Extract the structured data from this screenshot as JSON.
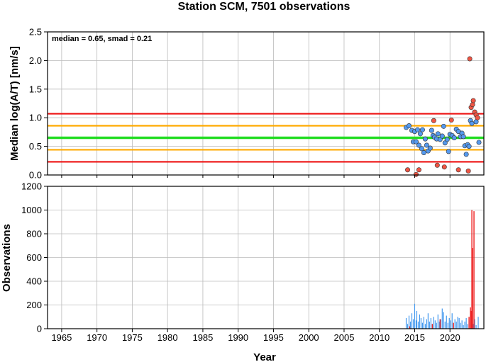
{
  "chart_data": [
    {
      "type": "scatter",
      "title": "Station SCM, 7501 observations",
      "ylabel": "Median log(A/T) [nm/s]",
      "xlabel": "",
      "annotation": "median = 0.65, smad = 0.21",
      "xlim": [
        1963,
        2024.8
      ],
      "ylim": [
        0,
        2.5
      ],
      "yticks": [
        "0.0",
        "0.5",
        "1.0",
        "1.5",
        "2.0",
        "2.5"
      ],
      "grid": true,
      "reference_lines": [
        {
          "y": 0.65,
          "color": "#22dd22",
          "role": "median"
        },
        {
          "y": 0.86,
          "color": "#ffaa00",
          "role": "+1 smad"
        },
        {
          "y": 0.44,
          "color": "#ffaa00",
          "role": "-1 smad"
        },
        {
          "y": 1.07,
          "color": "#ee1111",
          "role": "+2 smad"
        },
        {
          "y": 0.23,
          "color": "#ee1111",
          "role": "-2 smad"
        }
      ],
      "series": [
        {
          "color": "#5599ee",
          "x": [
            2013.8,
            2014.2,
            2014.6,
            2014.8,
            2015.0,
            2015.2,
            2015.4,
            2015.6,
            2015.8,
            2016.0,
            2016.1,
            2016.3,
            2016.5,
            2016.7,
            2016.9,
            2017.2,
            2017.4,
            2017.6,
            2017.8,
            2018.1,
            2018.3,
            2018.6,
            2018.9,
            2019.1,
            2019.3,
            2019.6,
            2019.8,
            2020.0,
            2020.3,
            2020.6,
            2020.9,
            2021.2,
            2021.5,
            2021.7,
            2021.9,
            2022.1,
            2022.3,
            2022.5,
            2022.7,
            2022.9,
            2023.1,
            2023.7,
            2024.1
          ],
          "y": [
            0.83,
            0.86,
            0.78,
            0.58,
            0.76,
            0.58,
            0.79,
            0.52,
            0.72,
            0.46,
            0.79,
            0.39,
            0.63,
            0.52,
            0.42,
            0.47,
            0.78,
            0.69,
            0.66,
            0.63,
            0.72,
            0.62,
            0.68,
            0.85,
            0.56,
            0.62,
            0.41,
            0.71,
            0.69,
            0.65,
            0.8,
            0.76,
            0.67,
            0.73,
            0.67,
            0.51,
            0.36,
            0.53,
            0.5,
            0.95,
            0.9,
            0.93,
            0.57
          ]
        },
        {
          "color": "#ee5544",
          "x": [
            2014.0,
            2015.2,
            2015.6,
            2017.7,
            2018.2,
            2019.2,
            2020.2,
            2021.2,
            2022.6,
            2022.8,
            2023.0,
            2023.2,
            2023.3,
            2023.5,
            2023.7,
            2023.9
          ],
          "y": [
            0.09,
            0.01,
            0.09,
            0.95,
            0.17,
            0.14,
            0.96,
            0.09,
            0.07,
            2.03,
            1.18,
            1.23,
            1.3,
            1.1,
            1.05,
            1.0
          ]
        }
      ]
    },
    {
      "type": "bar",
      "title": "",
      "ylabel": "Observations",
      "xlabel": "Year",
      "xlim": [
        1963,
        2024.8
      ],
      "ylim": [
        0,
        1200
      ],
      "xticks": [
        "1965",
        "1970",
        "1975",
        "1980",
        "1985",
        "1990",
        "1995",
        "2000",
        "2005",
        "2010",
        "2015",
        "2020"
      ],
      "yticks": [
        "0",
        "200",
        "400",
        "600",
        "800",
        "1000",
        "1200"
      ],
      "grid": true,
      "series": [
        {
          "color": "#4499ee",
          "x": [
            2013.8,
            2014.0,
            2014.2,
            2014.4,
            2014.6,
            2014.8,
            2015.0,
            2015.2,
            2015.3,
            2015.5,
            2015.7,
            2015.9,
            2016.1,
            2016.3,
            2016.5,
            2016.7,
            2016.9,
            2017.1,
            2017.3,
            2017.5,
            2017.7,
            2017.9,
            2018.1,
            2018.3,
            2018.5,
            2018.7,
            2018.9,
            2019.1,
            2019.3,
            2019.5,
            2019.7,
            2019.9,
            2020.1,
            2020.3,
            2020.5,
            2020.7,
            2020.9,
            2021.1,
            2021.3,
            2021.5,
            2021.7,
            2021.9,
            2022.1,
            2022.3,
            2022.5,
            2022.7,
            2022.9,
            2023.1,
            2023.3,
            2023.5,
            2023.7,
            2024.0
          ],
          "values": [
            90,
            40,
            110,
            60,
            130,
            80,
            210,
            70,
            150,
            60,
            120,
            90,
            50,
            100,
            40,
            80,
            130,
            60,
            90,
            40,
            100,
            70,
            50,
            120,
            60,
            80,
            170,
            140,
            60,
            110,
            50,
            90,
            70,
            130,
            40,
            80,
            60,
            100,
            90,
            50,
            70,
            30,
            60,
            90,
            40,
            70,
            50,
            60,
            40,
            80,
            30,
            100
          ]
        },
        {
          "color": "#ee2222",
          "x": [
            2014.3,
            2017.5,
            2018.6,
            2020.5,
            2022.7,
            2022.9,
            2023.0,
            2023.1,
            2023.2,
            2023.4
          ],
          "values": [
            20,
            40,
            80,
            50,
            100,
            180,
            150,
            1000,
            680,
            990
          ]
        }
      ]
    }
  ]
}
